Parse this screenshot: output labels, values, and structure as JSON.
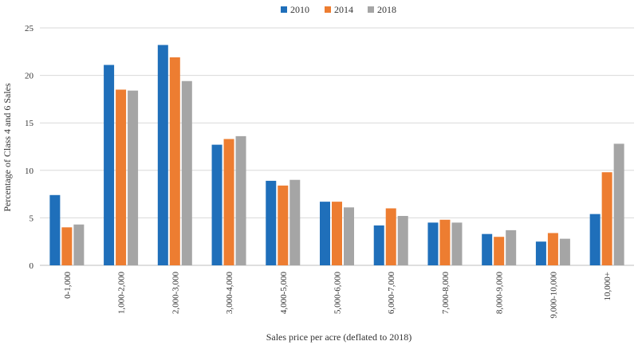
{
  "chart_data": {
    "type": "bar",
    "title": "",
    "xlabel": "Sales price per acre (deflated to 2018)",
    "ylabel": "Percentage of Class 4 and 6 Sales",
    "ylim": [
      0,
      25
    ],
    "yticks": [
      0,
      5,
      10,
      15,
      20,
      25
    ],
    "grid": true,
    "legend_position": "top-center",
    "categories": [
      "0-1,000",
      "1,000-2,000",
      "2,000-3,000",
      "3,000-4,000",
      "4,000-5,000",
      "5,000-6,000",
      "6,000-7,000",
      "7,000-8,000",
      "8,000-9,000",
      "9,000-10,000",
      "10,000+"
    ],
    "series": [
      {
        "name": "2010",
        "color": "#1f6fba",
        "values": [
          7.4,
          21.1,
          23.2,
          12.7,
          8.9,
          6.7,
          4.2,
          4.5,
          3.3,
          2.5,
          5.4
        ]
      },
      {
        "name": "2014",
        "color": "#ed7d31",
        "values": [
          4.0,
          18.5,
          21.9,
          13.3,
          8.4,
          6.7,
          6.0,
          4.8,
          3.0,
          3.4,
          9.8
        ]
      },
      {
        "name": "2018",
        "color": "#a5a5a5",
        "values": [
          4.3,
          18.4,
          19.4,
          13.6,
          9.0,
          6.1,
          5.2,
          4.5,
          3.7,
          2.8,
          12.8
        ]
      }
    ]
  }
}
